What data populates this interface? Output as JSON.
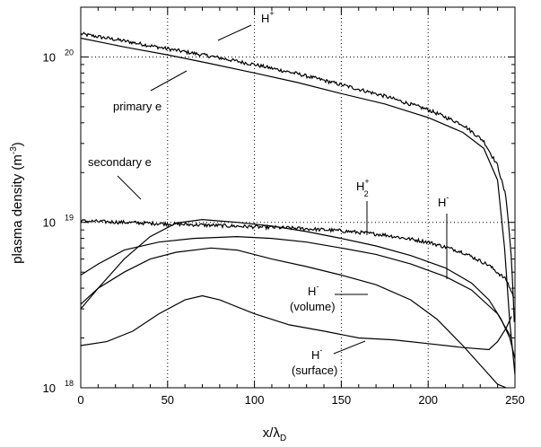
{
  "chart_data": {
    "type": "line",
    "xlabel": {
      "main": "x/λ",
      "sub": "D"
    },
    "ylabel": {
      "main": "plasma density (m",
      "sup": "-3",
      "close": ")"
    },
    "xlim": [
      0,
      250
    ],
    "ylim": [
      1e+18,
      2e+20
    ],
    "yscale": "log",
    "grid": "dotted",
    "x_ticks": [
      0,
      50,
      100,
      150,
      200,
      250
    ],
    "x_tick_labels": [
      "0",
      "50",
      "100",
      "150",
      "200",
      "250"
    ],
    "y_ticks": [
      1e+18,
      1e+19,
      1e+20
    ],
    "y_tick_labels": [
      {
        "base": "10",
        "exp": "18"
      },
      {
        "base": "10",
        "exp": "19"
      },
      {
        "base": "10",
        "exp": "20"
      }
    ],
    "series": [
      {
        "name": "H+",
        "noisy": true,
        "x": [
          0,
          25,
          50,
          75,
          100,
          125,
          150,
          175,
          200,
          220,
          232,
          240,
          245,
          248,
          250
        ],
        "values": [
          1.38e+20,
          1.25e+20,
          1.12e+20,
          1.01e+20,
          9e+19,
          7.9e+19,
          6.8e+19,
          5.8e+19,
          4.8e+19,
          3.9e+19,
          3.1e+19,
          2.2e+19,
          1.4e+19,
          6e+18,
          2e+18
        ]
      },
      {
        "name": "primary e",
        "noisy": false,
        "x": [
          0,
          25,
          50,
          75,
          100,
          125,
          150,
          175,
          200,
          220,
          232,
          240,
          244,
          247,
          250
        ],
        "values": [
          1.3e+20,
          1.15e+20,
          1.03e+20,
          9.1e+19,
          8e+19,
          7e+19,
          6e+19,
          5.2e+19,
          4.3e+19,
          3.5e+19,
          2.8e+19,
          1.8e+19,
          7e+18,
          2.5e+18,
          1.2e+18
        ]
      },
      {
        "name": "secondary e",
        "noisy": true,
        "x": [
          0,
          25,
          50,
          75,
          100,
          125,
          150,
          175,
          200,
          220,
          235,
          245,
          250
        ],
        "values": [
          1.02e+19,
          1e+19,
          9.8e+18,
          9.6e+18,
          9.4e+18,
          9.2e+18,
          8.9e+18,
          8.4e+18,
          7.6e+18,
          6.6e+18,
          5.5e+18,
          4.5e+18,
          3.4e+18
        ]
      },
      {
        "name": "H2+",
        "noisy": false,
        "x": [
          0,
          10,
          25,
          40,
          55,
          70,
          90,
          110,
          130,
          150,
          170,
          190,
          210,
          225,
          235,
          242,
          247,
          250
        ],
        "values": [
          3e+18,
          4e+18,
          6e+18,
          8.2e+18,
          9.9e+18,
          1.04e+19,
          1e+19,
          9.5e+18,
          8.8e+18,
          8e+18,
          7.2e+18,
          6.3e+18,
          5.3e+18,
          4.3e+18,
          3.4e+18,
          2.6e+18,
          2e+18,
          1.5e+18
        ]
      },
      {
        "name": "H-",
        "noisy": false,
        "x": [
          0,
          10,
          25,
          45,
          65,
          90,
          110,
          130,
          150,
          170,
          190,
          210,
          225,
          240,
          248
        ],
        "values": [
          4.8e+18,
          5.6e+18,
          6.8e+18,
          7.6e+18,
          8e+18,
          8.2e+18,
          8e+18,
          7.6e+18,
          7e+18,
          6.4e+18,
          5.6e+18,
          4.7e+18,
          3.9e+18,
          2.8e+18,
          2e+18
        ]
      },
      {
        "name": "H- (volume)",
        "noisy": false,
        "x": [
          0,
          10,
          25,
          40,
          55,
          75,
          90,
          110,
          130,
          150,
          170,
          190,
          205,
          220,
          232,
          240,
          245
        ],
        "values": [
          3.2e+18,
          4e+18,
          5e+18,
          6e+18,
          6.6e+18,
          7e+18,
          6.8e+18,
          6e+18,
          5.4e+18,
          4.8e+18,
          4.2e+18,
          3.4e+18,
          2.6e+18,
          1.8e+18,
          1.3e+18,
          1.05e+18,
          1e+18
        ]
      },
      {
        "name": "H- (surface)",
        "noisy": false,
        "x": [
          0,
          15,
          30,
          45,
          60,
          70,
          80,
          100,
          120,
          140,
          160,
          180,
          200,
          220,
          235,
          240,
          245,
          248
        ],
        "values": [
          1.8e+18,
          1.9e+18,
          2.2e+18,
          2.8e+18,
          3.4e+18,
          3.6e+18,
          3.4e+18,
          2.8e+18,
          2.4e+18,
          2.2e+18,
          2e+18,
          1.95e+18,
          1.85e+18,
          1.75e+18,
          1.7e+18,
          1.9e+18,
          2.3e+18,
          2.7e+18
        ]
      }
    ],
    "annotations": [
      {
        "id": "h-plus",
        "text": "H",
        "sup": "+",
        "sub": ""
      },
      {
        "id": "primary-e",
        "text": "primary e",
        "sup": "",
        "sub": ""
      },
      {
        "id": "secondary-e",
        "text": "secondary e",
        "sup": "",
        "sub": ""
      },
      {
        "id": "h2-plus",
        "text": "H",
        "sup": "+",
        "sub": "2"
      },
      {
        "id": "h-minus",
        "text": "H",
        "sup": "-",
        "sub": ""
      },
      {
        "id": "h-minus-volume",
        "text": "H",
        "sup": "-",
        "sub": "",
        "line2": "(volume)"
      },
      {
        "id": "h-minus-surface",
        "text": "H",
        "sup": "-",
        "sub": "",
        "line2": "(surface)"
      }
    ]
  }
}
